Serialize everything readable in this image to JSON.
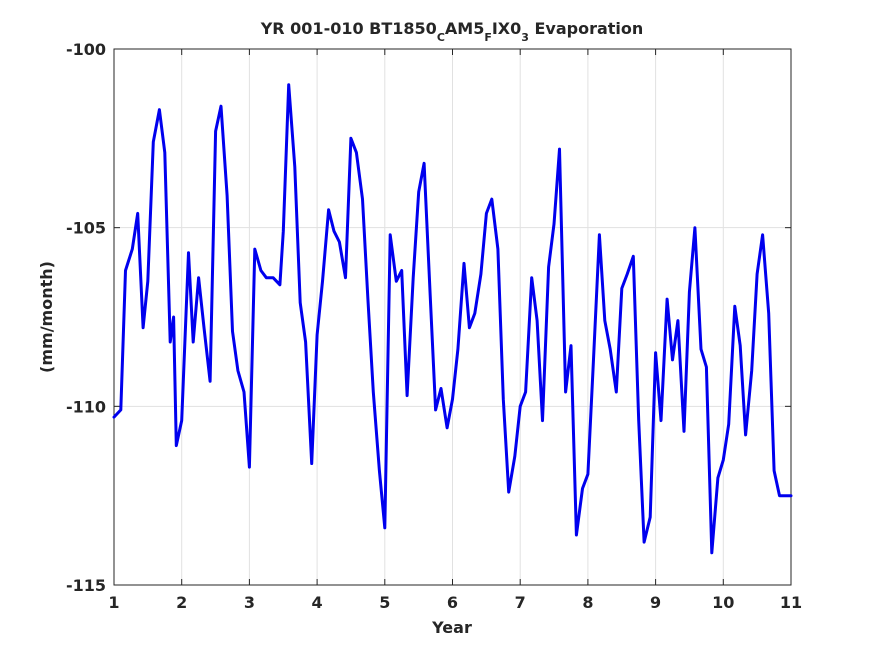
{
  "chart_data": {
    "type": "line",
    "title": "YR 001-010 BT1850CAM5FIX03 Evaporation",
    "title_parts": {
      "a": "YR 001-010 BT1850",
      "sub_c": "C",
      "b": "AM5",
      "sub_f": "F",
      "c": "IX0",
      "sub_3": "3",
      "d": " Evaporation"
    },
    "xlabel": "Year",
    "ylabel": "(mm/month)",
    "xlim": [
      1,
      11
    ],
    "ylim": [
      -115,
      -100
    ],
    "xticks": [
      1,
      2,
      3,
      4,
      5,
      6,
      7,
      8,
      9,
      10,
      11
    ],
    "xtick_labels": [
      "1",
      "2",
      "3",
      "4",
      "5",
      "6",
      "7",
      "8",
      "9",
      "10",
      "11"
    ],
    "yticks": [
      -115,
      -110,
      -105,
      -100
    ],
    "ytick_labels": [
      "-115",
      "-110",
      "-105",
      "-100"
    ],
    "grid": true,
    "line_color": "#0000ee",
    "series": [
      {
        "x": [
          1.0,
          1.1,
          1.17,
          1.27,
          1.35,
          1.43,
          1.5,
          1.58,
          1.67,
          1.75,
          1.83,
          1.88,
          1.92,
          2.0,
          2.1,
          2.17,
          2.25,
          2.33,
          2.42,
          2.5,
          2.58,
          2.67,
          2.75,
          2.83,
          2.92,
          3.0,
          3.08,
          3.17,
          3.25,
          3.35,
          3.45,
          3.5,
          3.58,
          3.67,
          3.75,
          3.83,
          3.92,
          4.0,
          4.08,
          4.17,
          4.25,
          4.33,
          4.42,
          4.5,
          4.58,
          4.67,
          4.75,
          4.83,
          4.92,
          5.0,
          5.08,
          5.17,
          5.25,
          5.33,
          5.42,
          5.5,
          5.58,
          5.67,
          5.75,
          5.83,
          5.92,
          6.0,
          6.08,
          6.17,
          6.25,
          6.33,
          6.42,
          6.5,
          6.58,
          6.67,
          6.75,
          6.83,
          6.92,
          7.0,
          7.08,
          7.17,
          7.25,
          7.33,
          7.42,
          7.5,
          7.58,
          7.67,
          7.75,
          7.83,
          7.92,
          8.0,
          8.08,
          8.17,
          8.25,
          8.33,
          8.42,
          8.5,
          8.58,
          8.67,
          8.75,
          8.83,
          8.92,
          9.0,
          9.08,
          9.17,
          9.25,
          9.33,
          9.42,
          9.5,
          9.58,
          9.67,
          9.75,
          9.83,
          9.92,
          10.0,
          10.08,
          10.17,
          10.25,
          10.33,
          10.42,
          10.5,
          10.58,
          10.67,
          10.75,
          10.83,
          10.92,
          11.0
        ],
        "y": [
          -110.3,
          -110.1,
          -106.2,
          -105.6,
          -104.6,
          -107.8,
          -106.5,
          -102.6,
          -101.7,
          -102.9,
          -108.2,
          -107.5,
          -111.1,
          -110.4,
          -105.7,
          -108.2,
          -106.4,
          -107.8,
          -109.3,
          -102.3,
          -101.6,
          -104.1,
          -107.9,
          -109.0,
          -109.6,
          -111.7,
          -105.6,
          -106.2,
          -106.4,
          -106.4,
          -106.6,
          -105.1,
          -101.0,
          -103.3,
          -107.1,
          -108.2,
          -111.6,
          -108.0,
          -106.5,
          -104.5,
          -105.1,
          -105.4,
          -106.4,
          -102.5,
          -102.9,
          -104.2,
          -107.0,
          -109.6,
          -111.8,
          -113.4,
          -105.2,
          -106.5,
          -106.2,
          -109.7,
          -106.4,
          -104.0,
          -103.2,
          -106.9,
          -110.1,
          -109.5,
          -110.6,
          -109.8,
          -108.4,
          -106.0,
          -107.8,
          -107.4,
          -106.3,
          -104.6,
          -104.2,
          -105.6,
          -109.8,
          -112.4,
          -111.4,
          -110.0,
          -109.6,
          -106.4,
          -107.6,
          -110.4,
          -106.1,
          -104.9,
          -102.8,
          -109.6,
          -108.3,
          -113.6,
          -112.3,
          -111.9,
          -108.8,
          -105.2,
          -107.6,
          -108.4,
          -109.6,
          -106.7,
          -106.3,
          -105.8,
          -110.4,
          -113.8,
          -113.1,
          -108.5,
          -110.4,
          -107.0,
          -108.7,
          -107.6,
          -110.7,
          -106.8,
          -105.0,
          -108.4,
          -108.9,
          -114.1,
          -112.0,
          -111.5,
          -110.5,
          -107.2,
          -108.3,
          -110.8,
          -109.0,
          -106.3,
          -105.2,
          -107.4,
          -111.8,
          -112.5,
          -112.5,
          -112.5
        ]
      }
    ]
  }
}
